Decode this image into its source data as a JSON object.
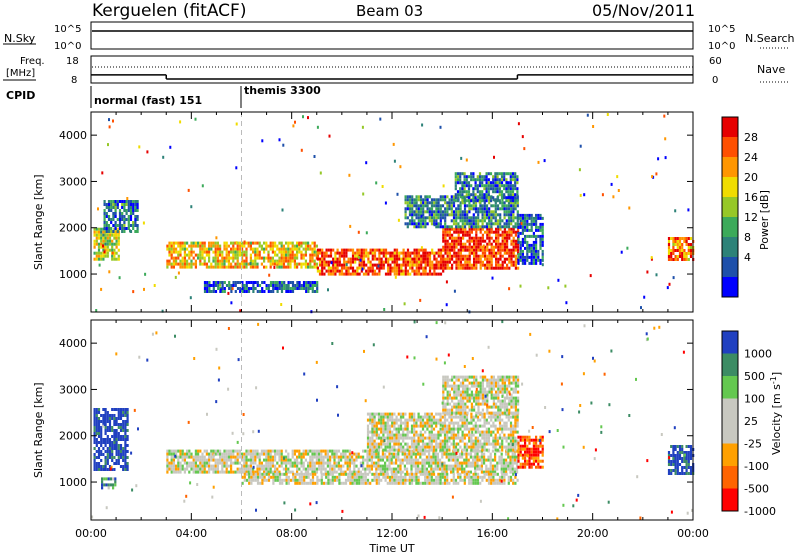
{
  "header": {
    "station": "Kerguelen (fitACF)",
    "beam": "Beam 03",
    "date": "05/Nov/2011"
  },
  "housekeeping": {
    "nsky_label": "N.Sky",
    "nsky_ticks": [
      "10^5",
      "10^0"
    ],
    "nsearch_label": "N.Search",
    "nsearch_ticks": [
      "10^5",
      "10^0"
    ],
    "freq_label_1": "Freq.",
    "freq_label_2": "[MHz]",
    "freq_ticks": [
      "18",
      "8"
    ],
    "nave_label": "Nave",
    "nave_ticks": [
      "60",
      "0"
    ],
    "cpid_label": "CPID",
    "cpid_segments": [
      {
        "label": "normal (fast) 151",
        "start_hour": 0,
        "end_hour": 6
      },
      {
        "label": "themis 3300",
        "start_hour": 6,
        "end_hour": 24
      }
    ],
    "freq_segments_mhz": [
      {
        "start_hour": 0,
        "end_hour": 3,
        "value": 11
      },
      {
        "start_hour": 3,
        "end_hour": 17,
        "value": 9.5
      },
      {
        "start_hour": 17,
        "end_hour": 24,
        "value": 11
      }
    ]
  },
  "chart_data": [
    {
      "type": "heatmap",
      "name": "power",
      "ylabel": "Slant Range [km]",
      "xlim_hours": [
        0,
        24
      ],
      "ylim_km": [
        180,
        4500
      ],
      "yticks": [
        "4000",
        "3000",
        "2000",
        "1000"
      ],
      "xticks": [
        "00:00",
        "04:00",
        "08:00",
        "12:00",
        "16:00",
        "20:00",
        "00:00"
      ],
      "colorbar_label": "Power [dB]",
      "colorbar_ticks": [
        "28",
        "24",
        "20",
        "16",
        "12",
        "8",
        "4"
      ],
      "colorbar_colors": [
        "#e60000",
        "#ff5000",
        "#ff9600",
        "#f0dc00",
        "#96c828",
        "#3caa5a",
        "#2d8278",
        "#1e50aa",
        "#0000ff"
      ],
      "marker_hour": 6,
      "echo_regions": [
        {
          "t0": 0.1,
          "t1": 1.1,
          "r0": 1300,
          "r1": 2000,
          "level": 0.55
        },
        {
          "t0": 0.5,
          "t1": 1.9,
          "r0": 1900,
          "r1": 2600,
          "level": 0.25
        },
        {
          "t0": 3.0,
          "t1": 9.0,
          "r0": 1150,
          "r1": 1700,
          "level": 0.65
        },
        {
          "t0": 9.0,
          "t1": 14.0,
          "r0": 1000,
          "r1": 1550,
          "level": 0.85
        },
        {
          "t0": 14.0,
          "t1": 17.0,
          "r0": 1100,
          "r1": 2000,
          "level": 0.9
        },
        {
          "t0": 12.5,
          "t1": 17.0,
          "r0": 2000,
          "r1": 2700,
          "level": 0.3
        },
        {
          "t0": 14.5,
          "t1": 17.0,
          "r0": 2600,
          "r1": 3200,
          "level": 0.25
        },
        {
          "t0": 17.0,
          "t1": 18.0,
          "r0": 1200,
          "r1": 2300,
          "level": 0.2
        },
        {
          "t0": 4.5,
          "t1": 9.0,
          "r0": 650,
          "r1": 850,
          "level": 0.2
        },
        {
          "t0": 23.0,
          "t1": 24.0,
          "r0": 1300,
          "r1": 1800,
          "level": 0.75
        }
      ]
    },
    {
      "type": "heatmap",
      "name": "velocity",
      "ylabel": "Slant Range [km]",
      "xlabel": "Time UT",
      "xlim_hours": [
        0,
        24
      ],
      "ylim_km": [
        180,
        4500
      ],
      "yticks": [
        "4000",
        "3000",
        "2000",
        "1000"
      ],
      "xticks": [
        "00:00",
        "04:00",
        "08:00",
        "12:00",
        "16:00",
        "20:00",
        "00:00"
      ],
      "colorbar_label": "Velocity [m s^-1]",
      "colorbar_ticks": [
        "1000",
        "500",
        "100",
        "25",
        "-25",
        "-100",
        "-500",
        "-1000"
      ],
      "colorbar_colors": [
        "#2040c0",
        "#3c8c64",
        "#64c850",
        "#c8c8c0",
        "#c8c8c0",
        "#ffa000",
        "#ff6400",
        "#ff0000"
      ],
      "marker_hour": 6,
      "echo_regions": [
        {
          "t0": 0.1,
          "t1": 1.5,
          "r0": 1300,
          "r1": 2600,
          "level": 0.0
        },
        {
          "t0": 0.4,
          "t1": 1.0,
          "r0": 850,
          "r1": 1100,
          "level": 0.2
        },
        {
          "t0": 3.0,
          "t1": 17.0,
          "r0": 1200,
          "r1": 1700,
          "level": 0.5
        },
        {
          "t0": 6.0,
          "t1": 17.0,
          "r0": 1000,
          "r1": 1200,
          "level": 0.5
        },
        {
          "t0": 11.0,
          "t1": 17.0,
          "r0": 1700,
          "r1": 2500,
          "level": 0.5
        },
        {
          "t0": 14.0,
          "t1": 17.0,
          "r0": 2500,
          "r1": 3300,
          "level": 0.5
        },
        {
          "t0": 17.0,
          "t1": 18.0,
          "r0": 1300,
          "r1": 2000,
          "level": 0.85
        },
        {
          "t0": 23.0,
          "t1": 24.0,
          "r0": 1200,
          "r1": 1800,
          "level": 0.0
        }
      ]
    }
  ]
}
